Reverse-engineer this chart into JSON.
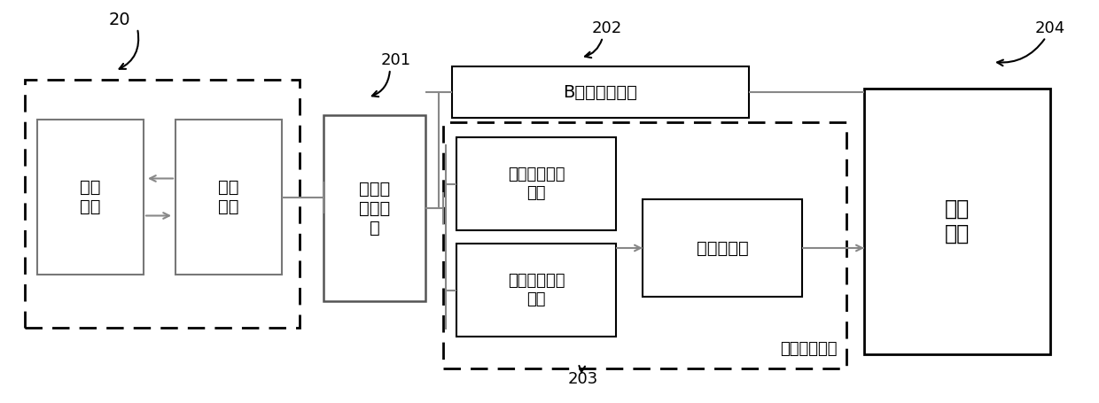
{
  "bg_color": "#ffffff",
  "line_color": "#000000",
  "gray_line": "#888888",
  "dark_gray_box": "#666666",
  "label_20": "20",
  "label_201": "201",
  "label_202": "202",
  "label_203": "203",
  "label_204": "204",
  "box_ultrasound": "超声\n探头",
  "box_transmit": "发射\n接收",
  "box_signal_pre": "信号预\n处理装\n置",
  "box_b_signal": "B信号处理装置",
  "box_elastic_detect": "弹性信息检测\n模块",
  "box_quality_param": "质量参数计算\n模块",
  "box_frame": "帧处理模块",
  "box_display": "显示\n装置",
  "label_elastic_device": "弹性处理装置",
  "font_size_main": 14,
  "font_size_label": 13,
  "font_size_num": 13
}
